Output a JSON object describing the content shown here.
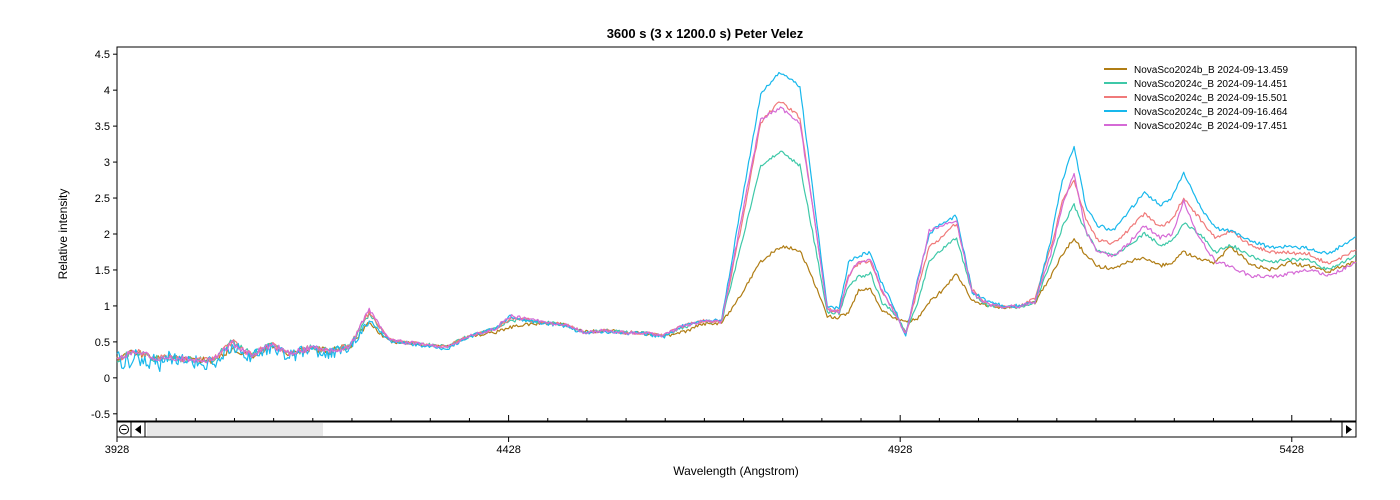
{
  "chart_data": {
    "type": "line",
    "title": "3600 s (3 x 1200.0 s)   Peter Velez",
    "xlabel": "Wavelength (Angstrom)",
    "ylabel": "Relative intensity",
    "xlim": [
      3928,
      5510
    ],
    "ylim": [
      -0.6,
      4.6
    ],
    "x_ticks": [
      3928,
      4428,
      4928,
      5428
    ],
    "y_ticks": [
      -0.5,
      0,
      0.5,
      1,
      1.5,
      2,
      2.5,
      3,
      3.5,
      4,
      4.5
    ],
    "x_tick_labels": [
      "3928",
      "4428",
      "4928",
      "5428"
    ],
    "y_tick_labels": [
      "-0.5",
      "0",
      "0.5",
      "1",
      "1.5",
      "2",
      "2.5",
      "3",
      "3.5",
      "4",
      "4.5"
    ],
    "legend_position": "top-right",
    "x": [
      3928,
      3950,
      3975,
      4000,
      4025,
      4050,
      4075,
      4100,
      4125,
      4150,
      4175,
      4200,
      4225,
      4250,
      4275,
      4300,
      4325,
      4350,
      4370,
      4390,
      4410,
      4430,
      4450,
      4475,
      4500,
      4525,
      4550,
      4575,
      4600,
      4625,
      4650,
      4675,
      4700,
      4725,
      4750,
      4775,
      4800,
      4820,
      4835,
      4850,
      4862,
      4875,
      4890,
      4905,
      4920,
      4935,
      4950,
      4965,
      4980,
      5000,
      5020,
      5040,
      5060,
      5080,
      5100,
      5120,
      5135,
      5150,
      5165,
      5180,
      5200,
      5220,
      5240,
      5260,
      5275,
      5290,
      5310,
      5330,
      5350,
      5375,
      5400,
      5425,
      5450,
      5475,
      5510
    ],
    "series": [
      {
        "name": "NovaSco2024b_B  2024-09-13.459",
        "color": "#b07d14",
        "values": [
          0.26,
          0.36,
          0.27,
          0.29,
          0.25,
          0.24,
          0.4,
          0.3,
          0.46,
          0.33,
          0.41,
          0.37,
          0.44,
          0.76,
          0.51,
          0.48,
          0.46,
          0.43,
          0.54,
          0.6,
          0.63,
          0.7,
          0.74,
          0.76,
          0.74,
          0.64,
          0.66,
          0.63,
          0.62,
          0.58,
          0.63,
          0.75,
          0.76,
          1.15,
          1.62,
          1.82,
          1.78,
          1.28,
          0.86,
          0.84,
          0.92,
          1.22,
          1.24,
          0.93,
          0.84,
          0.78,
          0.82,
          1.05,
          1.2,
          1.45,
          1.08,
          1.0,
          0.98,
          0.99,
          1.05,
          1.4,
          1.72,
          1.93,
          1.71,
          1.55,
          1.52,
          1.62,
          1.66,
          1.56,
          1.6,
          1.75,
          1.65,
          1.6,
          1.83,
          1.58,
          1.5,
          1.6,
          1.55,
          1.48,
          1.62
        ]
      },
      {
        "name": "NovaSco2024c_B  2024-09-14.451",
        "color": "#3ec8a8",
        "values": [
          0.24,
          0.38,
          0.27,
          0.28,
          0.24,
          0.26,
          0.5,
          0.32,
          0.46,
          0.33,
          0.42,
          0.37,
          0.44,
          0.9,
          0.53,
          0.49,
          0.46,
          0.43,
          0.55,
          0.62,
          0.68,
          0.8,
          0.8,
          0.77,
          0.74,
          0.62,
          0.66,
          0.63,
          0.63,
          0.58,
          0.7,
          0.78,
          0.78,
          1.85,
          2.95,
          3.15,
          2.95,
          1.8,
          0.92,
          0.9,
          1.28,
          1.4,
          1.45,
          1.05,
          0.9,
          0.65,
          1.05,
          1.62,
          1.78,
          1.95,
          1.18,
          1.0,
          0.98,
          0.99,
          1.05,
          1.6,
          2.1,
          2.4,
          2.03,
          1.78,
          1.71,
          1.83,
          2.01,
          1.85,
          1.9,
          2.15,
          2.01,
          1.75,
          1.85,
          1.7,
          1.6,
          1.65,
          1.63,
          1.5,
          1.7
        ]
      },
      {
        "name": "NovaSco2024c_B  2024-09-15.501",
        "color": "#f07a7a",
        "values": [
          0.24,
          0.38,
          0.27,
          0.28,
          0.24,
          0.26,
          0.5,
          0.32,
          0.46,
          0.33,
          0.42,
          0.37,
          0.44,
          0.92,
          0.53,
          0.49,
          0.46,
          0.43,
          0.55,
          0.62,
          0.68,
          0.82,
          0.82,
          0.77,
          0.74,
          0.63,
          0.66,
          0.63,
          0.63,
          0.58,
          0.72,
          0.79,
          0.79,
          2.1,
          3.55,
          3.85,
          3.62,
          2.1,
          0.95,
          0.92,
          1.42,
          1.6,
          1.62,
          1.2,
          0.95,
          0.6,
          1.22,
          1.82,
          1.95,
          2.15,
          1.22,
          1.02,
          0.99,
          1.0,
          1.1,
          1.8,
          2.45,
          2.75,
          2.22,
          1.92,
          1.87,
          2.06,
          2.28,
          2.1,
          2.2,
          2.5,
          2.22,
          1.95,
          2.04,
          1.85,
          1.75,
          1.74,
          1.72,
          1.58,
          1.78
        ]
      },
      {
        "name": "NovaSco2024c_B  2024-09-16.464",
        "color": "#18b8ec",
        "values": [
          0.22,
          0.3,
          0.2,
          0.25,
          0.22,
          0.2,
          0.44,
          0.28,
          0.44,
          0.3,
          0.4,
          0.34,
          0.42,
          0.8,
          0.52,
          0.47,
          0.44,
          0.4,
          0.53,
          0.62,
          0.68,
          0.86,
          0.8,
          0.76,
          0.72,
          0.62,
          0.65,
          0.62,
          0.62,
          0.56,
          0.72,
          0.8,
          0.8,
          2.4,
          3.95,
          4.25,
          4.05,
          2.3,
          0.98,
          0.98,
          1.6,
          1.7,
          1.74,
          1.3,
          0.99,
          0.58,
          1.35,
          2.0,
          2.15,
          2.25,
          1.2,
          1.05,
          1.0,
          1.0,
          1.05,
          1.9,
          2.75,
          3.23,
          2.38,
          2.12,
          2.05,
          2.32,
          2.58,
          2.4,
          2.5,
          2.85,
          2.4,
          2.08,
          2.05,
          1.9,
          1.82,
          1.82,
          1.8,
          1.72,
          1.96
        ]
      },
      {
        "name": "NovaSco2024c_B  2024-09-17.451",
        "color": "#d56ad6",
        "values": [
          0.24,
          0.38,
          0.27,
          0.28,
          0.24,
          0.26,
          0.48,
          0.32,
          0.46,
          0.33,
          0.42,
          0.37,
          0.44,
          0.95,
          0.53,
          0.49,
          0.46,
          0.43,
          0.55,
          0.62,
          0.68,
          0.86,
          0.82,
          0.77,
          0.74,
          0.63,
          0.66,
          0.63,
          0.63,
          0.58,
          0.72,
          0.78,
          0.78,
          2.2,
          3.6,
          3.75,
          3.55,
          2.1,
          0.95,
          0.92,
          1.42,
          1.62,
          1.65,
          1.2,
          0.93,
          0.6,
          1.3,
          2.05,
          2.12,
          2.18,
          1.18,
          1.02,
          0.99,
          1.0,
          1.05,
          1.7,
          2.4,
          2.85,
          2.05,
          1.75,
          1.68,
          1.88,
          2.12,
          1.95,
          2.0,
          2.45,
          1.95,
          1.62,
          1.55,
          1.42,
          1.4,
          1.45,
          1.5,
          1.42,
          1.6
        ]
      }
    ]
  }
}
